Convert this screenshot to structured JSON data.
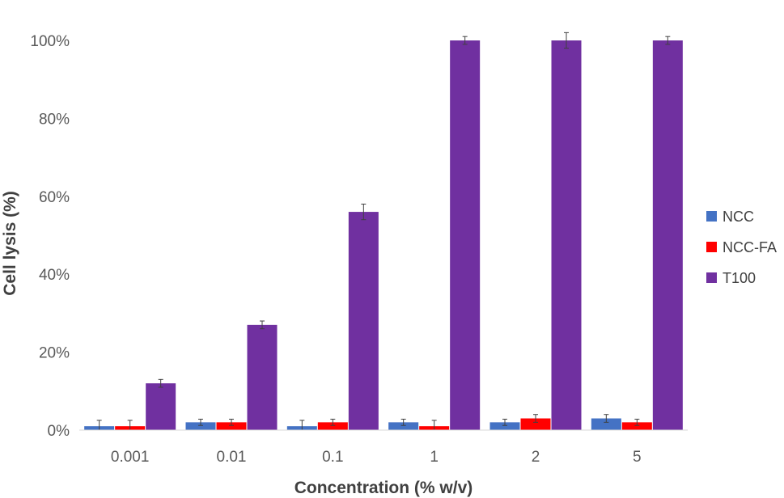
{
  "chart_data": {
    "type": "bar",
    "title": "",
    "xlabel": "Concentration (% w/v)",
    "ylabel": "Cell lysis (%)",
    "ylim": [
      0,
      100
    ],
    "yticks": [
      0,
      20,
      40,
      60,
      80,
      100
    ],
    "ytick_labels": [
      "0%",
      "20%",
      "40%",
      "60%",
      "80%",
      "100%"
    ],
    "categories": [
      "0.001",
      "0.01",
      "0.1",
      "1",
      "2",
      "5"
    ],
    "grid": false,
    "legend_position": "right",
    "series": [
      {
        "name": "NCC",
        "color": "#4472C4",
        "values": [
          1,
          2,
          1,
          2,
          2,
          3
        ],
        "errors": [
          1.5,
          0.8,
          1.5,
          0.8,
          0.8,
          1.0
        ]
      },
      {
        "name": "NCC-FA",
        "color": "#FF0000",
        "values": [
          1,
          2,
          2,
          1,
          3,
          2
        ],
        "errors": [
          1.5,
          0.8,
          0.8,
          1.5,
          1.0,
          0.8
        ]
      },
      {
        "name": "T100",
        "color": "#7030A0",
        "values": [
          12,
          27,
          56,
          100,
          100,
          100
        ],
        "errors": [
          1.0,
          1.0,
          2.0,
          1.0,
          2.0,
          1.0
        ]
      }
    ]
  }
}
